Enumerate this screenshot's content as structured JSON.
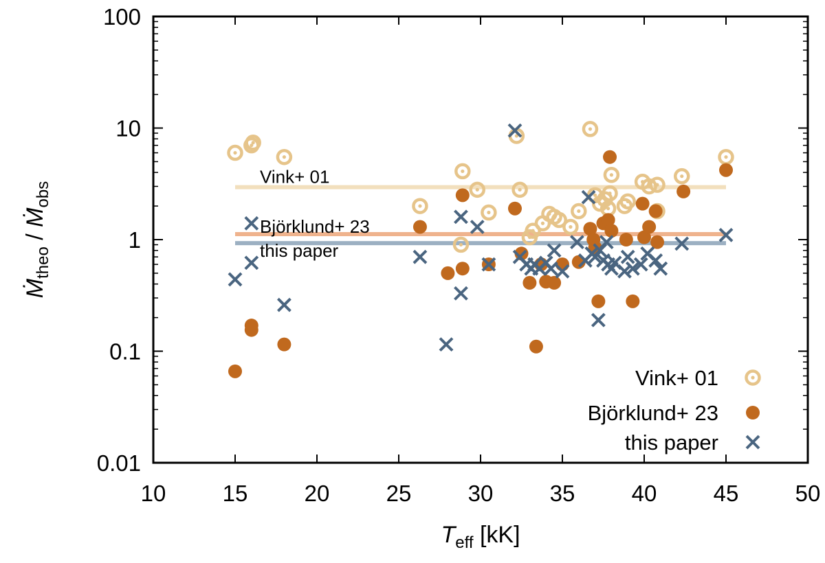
{
  "chart_data": {
    "type": "scatter",
    "title": "",
    "xlabel": {
      "main": "T",
      "sub": "eff",
      "unit": " [kK]"
    },
    "ylabel": {
      "num_main": "Ṁ",
      "num_sub": "theo",
      "sep": " / ",
      "den_main": "Ṁ",
      "den_sub": "obs"
    },
    "xlim": [
      10,
      50
    ],
    "ylim": [
      0.01,
      100
    ],
    "yscale": "log",
    "grid": false,
    "legend_position": "bottom-right",
    "xticks": [
      10,
      15,
      20,
      25,
      30,
      35,
      40,
      45,
      50
    ],
    "xtick_labels": [
      "10",
      "15",
      "20",
      "25",
      "30",
      "35",
      "40",
      "45",
      "50"
    ],
    "yticks": [
      0.01,
      0.1,
      1,
      10,
      100
    ],
    "ytick_labels": [
      "0.01",
      "0.1",
      "1",
      "10",
      "100"
    ],
    "series": [
      {
        "name": "Vink+ 01",
        "marker": "ring-dot",
        "color": "#e6c48a",
        "x": [
          15.0,
          16.0,
          16.1,
          18.0,
          26.3,
          28.8,
          28.9,
          29.8,
          30.5,
          32.2,
          32.4,
          33.0,
          33.2,
          33.8,
          34.2,
          34.5,
          34.8,
          35.5,
          36.0,
          36.7,
          37.0,
          37.3,
          37.6,
          37.9,
          38.0,
          38.8,
          39.0,
          39.9,
          40.3,
          40.8,
          42.3,
          45.0,
          40.8,
          37.8
        ],
        "y": [
          6.0,
          7.0,
          7.4,
          5.5,
          2.0,
          0.9,
          4.1,
          2.8,
          1.75,
          8.5,
          2.8,
          1.05,
          1.2,
          1.4,
          1.7,
          1.6,
          1.5,
          1.3,
          1.8,
          9.8,
          2.5,
          2.1,
          2.3,
          2.6,
          3.8,
          2.0,
          2.2,
          3.3,
          3.0,
          3.1,
          3.7,
          5.5,
          1.8,
          1.9
        ]
      },
      {
        "name": "Björklund+ 23",
        "marker": "dot",
        "color": "#c0691e",
        "x": [
          15.0,
          16.0,
          16.0,
          18.0,
          26.3,
          28.0,
          28.9,
          28.9,
          30.5,
          32.1,
          32.5,
          33.0,
          33.4,
          33.7,
          34.0,
          34.5,
          35.0,
          36.0,
          36.7,
          36.9,
          37.0,
          37.2,
          37.5,
          37.8,
          37.9,
          38.0,
          38.9,
          39.3,
          39.9,
          40.0,
          40.3,
          40.7,
          40.8,
          42.4,
          45.0
        ],
        "y": [
          0.066,
          0.17,
          0.155,
          0.115,
          1.3,
          0.5,
          0.55,
          2.5,
          0.6,
          1.9,
          0.75,
          0.41,
          0.11,
          0.6,
          0.42,
          0.41,
          0.6,
          0.63,
          1.25,
          1.0,
          0.85,
          0.28,
          1.4,
          1.5,
          5.5,
          1.2,
          1.0,
          0.28,
          2.1,
          1.05,
          1.3,
          1.8,
          0.95,
          2.7,
          4.2
        ]
      },
      {
        "name": "this paper",
        "marker": "cross",
        "color": "#4a6580",
        "x": [
          15.0,
          16.0,
          16.0,
          18.0,
          26.3,
          27.9,
          28.8,
          28.8,
          29.8,
          30.5,
          32.1,
          32.4,
          32.8,
          33.1,
          33.3,
          33.6,
          34.0,
          34.3,
          34.5,
          35.0,
          35.9,
          36.4,
          36.8,
          37.0,
          37.2,
          37.3,
          37.5,
          37.8,
          38.0,
          38.2,
          38.8,
          39.0,
          39.3,
          39.8,
          40.2,
          40.7,
          41.0,
          42.3,
          45.0,
          36.6,
          37.7
        ],
        "y": [
          0.44,
          0.62,
          1.4,
          0.26,
          0.7,
          0.115,
          1.6,
          0.33,
          1.3,
          0.6,
          9.5,
          0.7,
          0.6,
          0.55,
          0.6,
          0.55,
          0.62,
          0.55,
          0.8,
          0.52,
          0.95,
          0.65,
          0.75,
          0.7,
          0.19,
          0.8,
          0.65,
          0.6,
          0.55,
          0.62,
          0.52,
          0.7,
          0.55,
          0.6,
          0.75,
          0.65,
          0.55,
          0.92,
          1.1,
          2.4,
          0.95
        ]
      }
    ],
    "reference_lines": [
      {
        "label": "Vink+ 01",
        "y": 2.95,
        "x_start": 15,
        "x_end": 45,
        "color": "#f2dfbd"
      },
      {
        "label": "Björklund+ 23",
        "y": 1.12,
        "x_start": 15,
        "x_end": 45,
        "color": "#efb38d"
      },
      {
        "label": "this paper",
        "y": 0.93,
        "x_start": 15,
        "x_end": 45,
        "color": "#9cb0c2"
      }
    ]
  }
}
